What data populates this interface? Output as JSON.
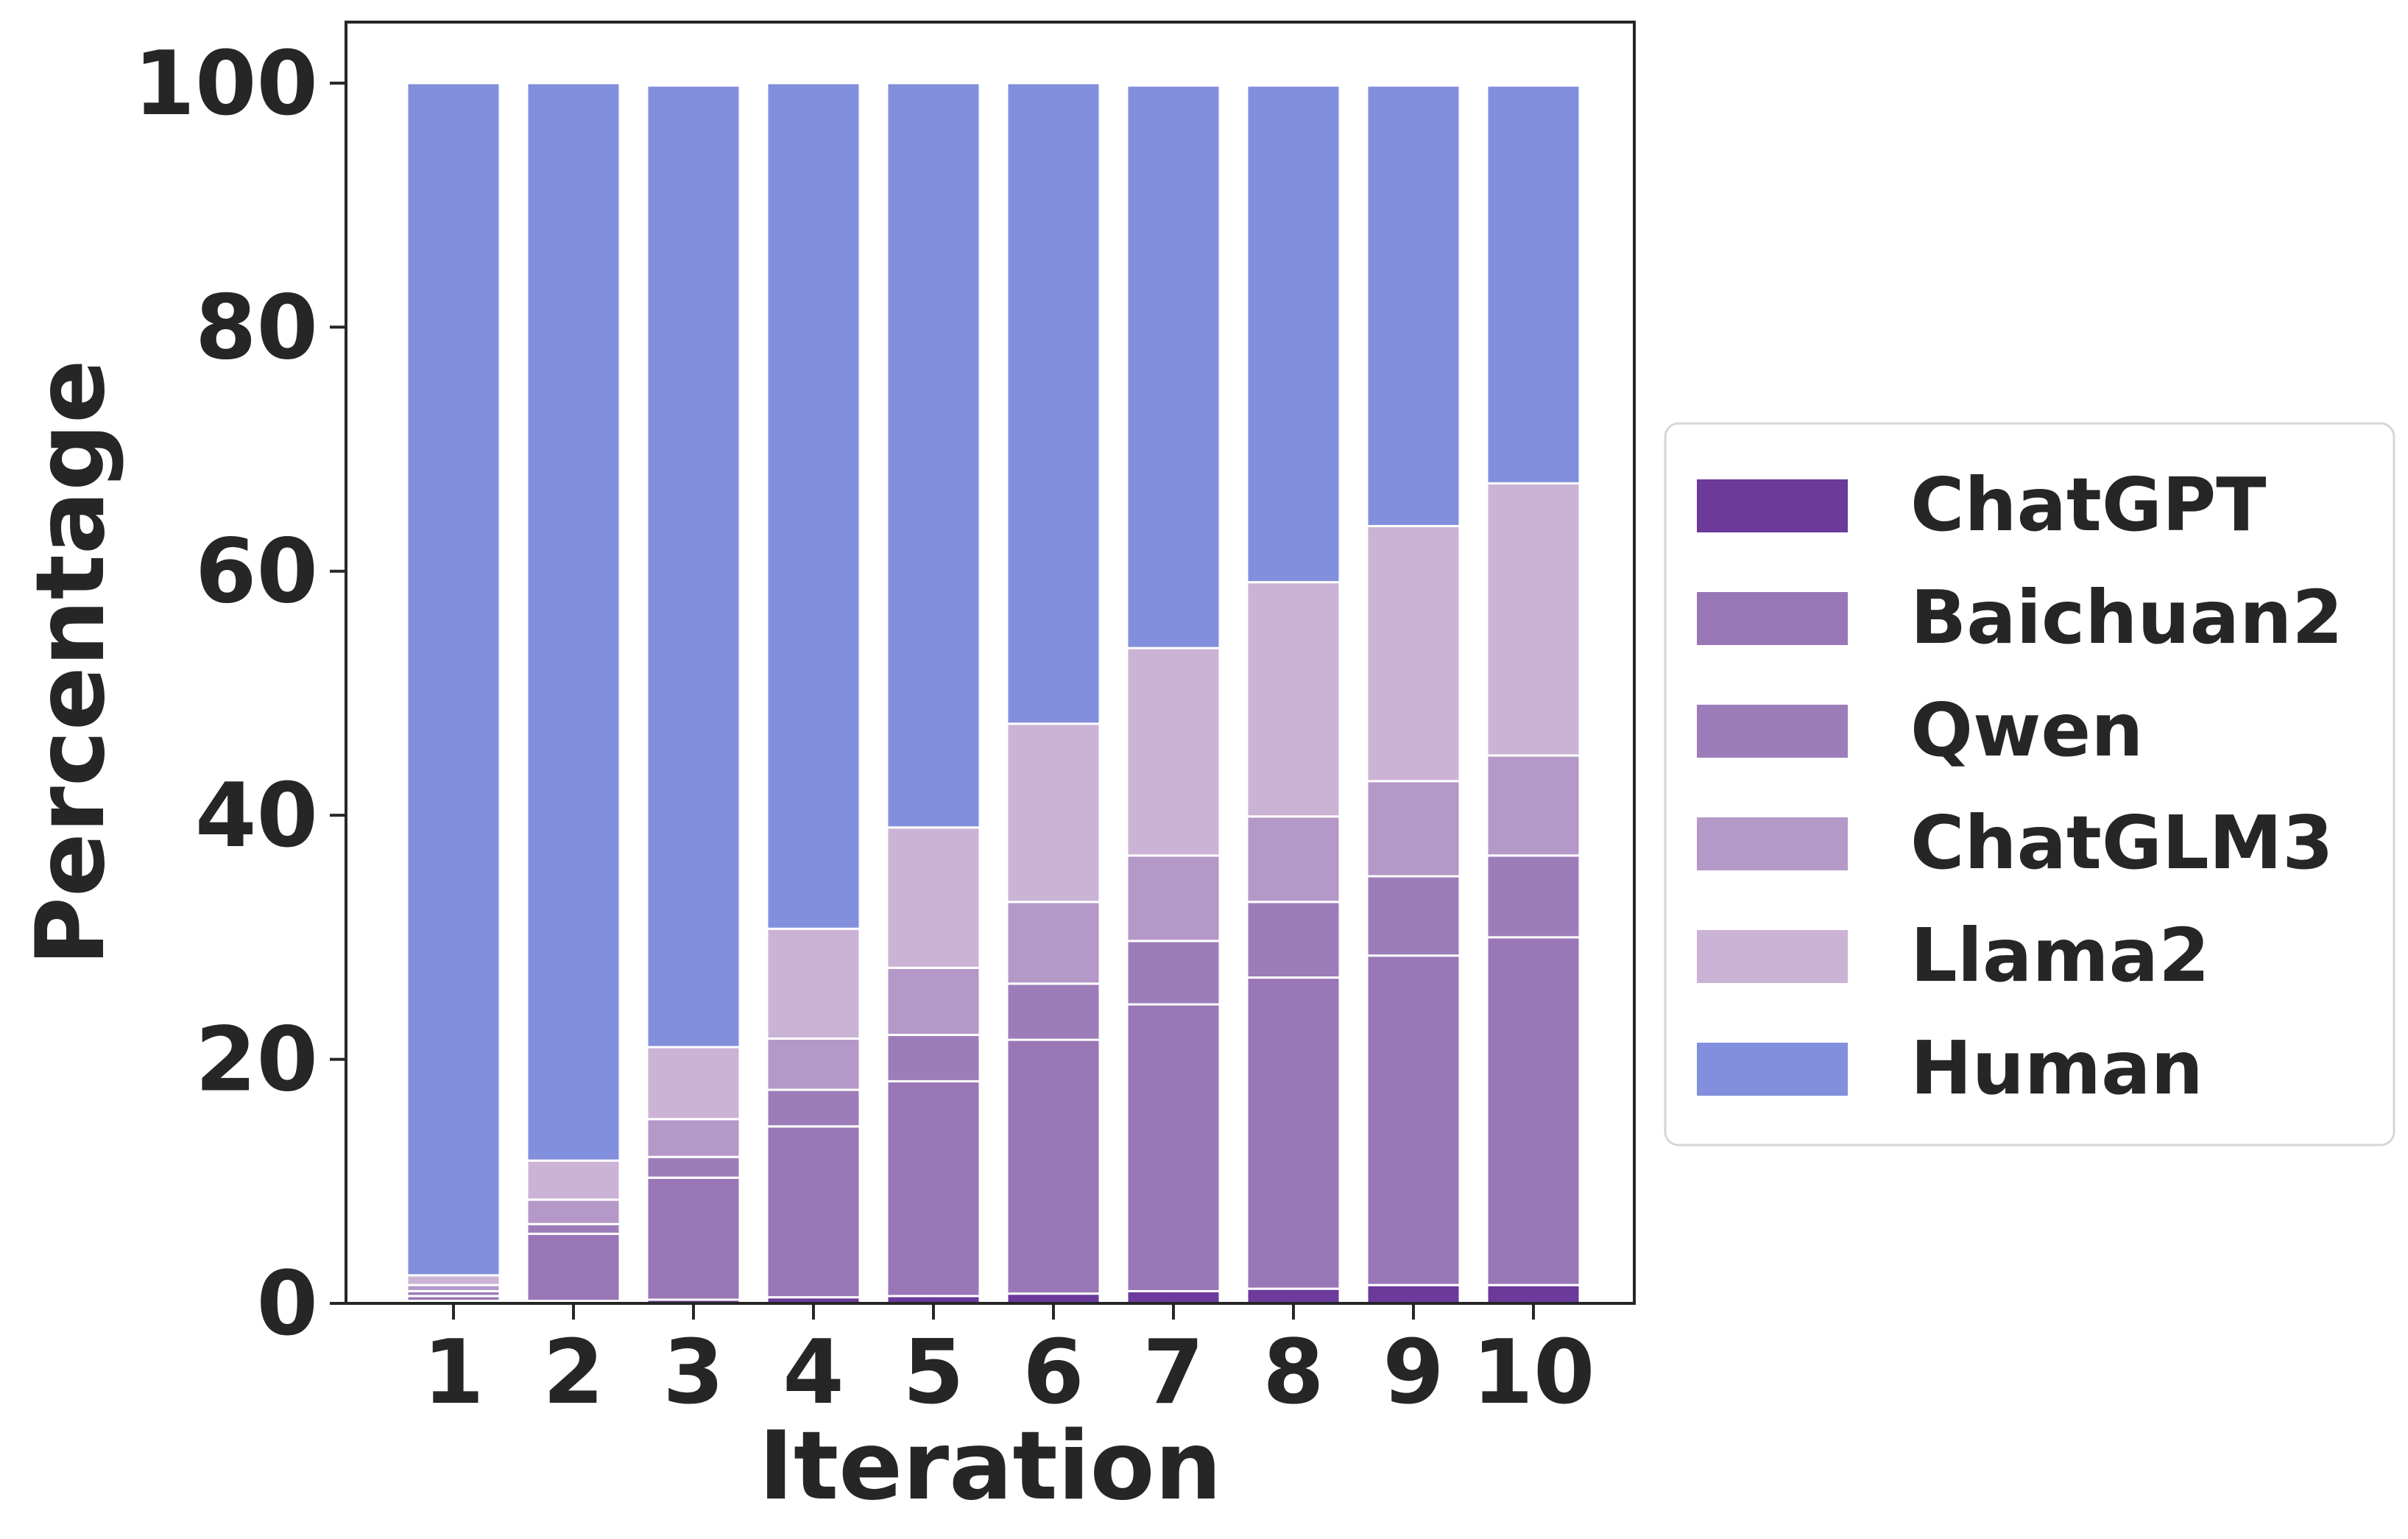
{
  "chart_data": {
    "type": "bar",
    "stacked": true,
    "title": "",
    "xlabel": "Iteration",
    "ylabel": "Percentage",
    "categories": [
      "1",
      "2",
      "3",
      "4",
      "5",
      "6",
      "7",
      "8",
      "9",
      "10"
    ],
    "ylim": [
      0,
      105
    ],
    "yticks": [
      0,
      20,
      40,
      60,
      80,
      100
    ],
    "grid": false,
    "legend_position": "right",
    "series": [
      {
        "name": "ChatGPT",
        "color": "#6b3a9a",
        "values": [
          0.2,
          0.2,
          0.3,
          0.5,
          0.6,
          0.8,
          1.0,
          1.2,
          1.5,
          1.5
        ]
      },
      {
        "name": "Baichuan2",
        "color": "#9977b6",
        "values": [
          0.4,
          5.5,
          10.0,
          14.0,
          17.6,
          20.8,
          23.5,
          25.5,
          27.0,
          28.5
        ]
      },
      {
        "name": "Qwen",
        "color": "#9d7db9",
        "values": [
          0.4,
          0.8,
          1.7,
          3.0,
          3.8,
          4.6,
          5.2,
          6.2,
          6.5,
          6.7
        ]
      },
      {
        "name": "ChatGLM3",
        "color": "#b498c8",
        "values": [
          0.5,
          2.0,
          3.1,
          4.2,
          5.5,
          6.7,
          7.0,
          7.0,
          7.8,
          8.2
        ]
      },
      {
        "name": "Llama2",
        "color": "#cbb3d6",
        "values": [
          0.8,
          3.2,
          5.9,
          9.0,
          11.5,
          14.6,
          17.0,
          19.2,
          20.9,
          22.3
        ]
      },
      {
        "name": "Human",
        "color": "#818fdc",
        "values": [
          97.7,
          88.3,
          78.8,
          69.3,
          61.0,
          52.5,
          46.1,
          40.7,
          36.1,
          32.6
        ]
      }
    ]
  }
}
